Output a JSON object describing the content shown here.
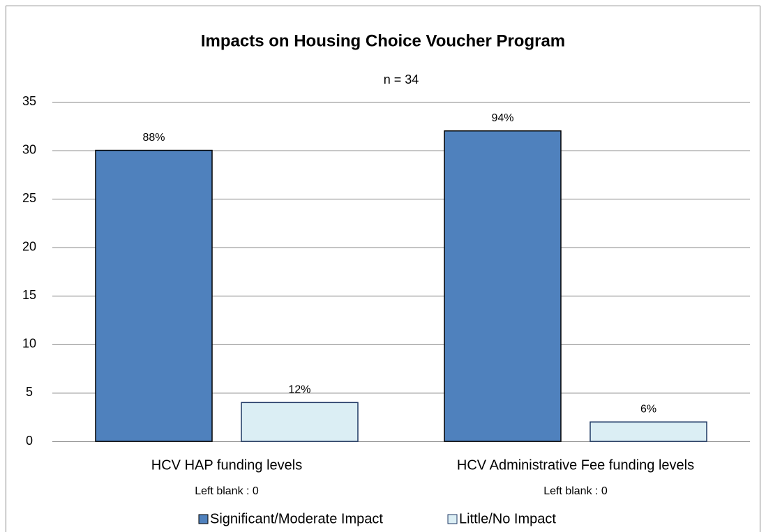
{
  "chart_data": {
    "type": "bar",
    "title": "Impacts on Housing Choice Voucher Program",
    "subtitle": "n = 34",
    "categories": [
      "HCV HAP funding levels",
      "HCV Administrative Fee funding levels"
    ],
    "category_notes": [
      "Left blank : 0",
      "Left blank : 0"
    ],
    "series": [
      {
        "name": "Significant/Moderate Impact",
        "color": "#4f81bd",
        "values": [
          30,
          32
        ],
        "value_labels": [
          "88%",
          "94%"
        ]
      },
      {
        "name": "Little/No Impact",
        "color": "#dbeef4",
        "values": [
          4,
          2
        ],
        "value_labels": [
          "12%",
          "6%"
        ]
      }
    ],
    "ylim": [
      0,
      35
    ],
    "yticks": [
      0,
      5,
      10,
      15,
      20,
      25,
      30,
      35
    ],
    "grid": true,
    "legend": "bottom"
  }
}
